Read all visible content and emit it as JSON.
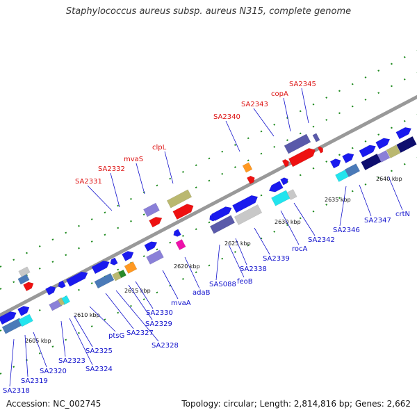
{
  "title": "Staphylococcus aureus subsp. aureus N315, complete genome",
  "accession": "Accession: NC_002745",
  "summary": "Topology: circular; Length: 2,814,816 bp; Genes: 2,662",
  "colors": {
    "blue": "#1a1aee",
    "navy": "#0e0e6e",
    "slate": "#5a5aaa",
    "lavender": "#8a80d8",
    "red": "#ee1111",
    "orange": "#ff9922",
    "magenta": "#ee11aa",
    "cyan": "#22e4ee",
    "steel": "#4a7ab8",
    "olive": "#bab870",
    "green": "#2a8a2a",
    "gray": "#c8c8c8",
    "backbone": "#999999",
    "dots": "#1e8a1e",
    "label_blue": "#1010cc",
    "label_red": "#dd1111"
  },
  "tick_labels": [
    "2605 kbp",
    "2610 kbp",
    "2615 kbp",
    "2620 kbp",
    "2625 kbp",
    "2630 kbp",
    "2635 kbp",
    "2640 kbp"
  ],
  "gene_labels_top": [
    "SA2331",
    "SA2332",
    "mvaS",
    "clpL",
    "SA2340",
    "SA2343",
    "copA",
    "SA2345"
  ],
  "gene_labels_bottom": [
    "SA2318",
    "SA2319",
    "SA2320",
    "SA2323",
    "SA2324",
    "SA2325",
    "ptsG",
    "SA2327",
    "SA2328",
    "SA2329",
    "SA2330",
    "mvaA",
    "adaB",
    "SAS088",
    "feoB",
    "SA2338",
    "SA2339",
    "rocA",
    "SA2342",
    "SA2346",
    "SA2347",
    "crtN"
  ]
}
